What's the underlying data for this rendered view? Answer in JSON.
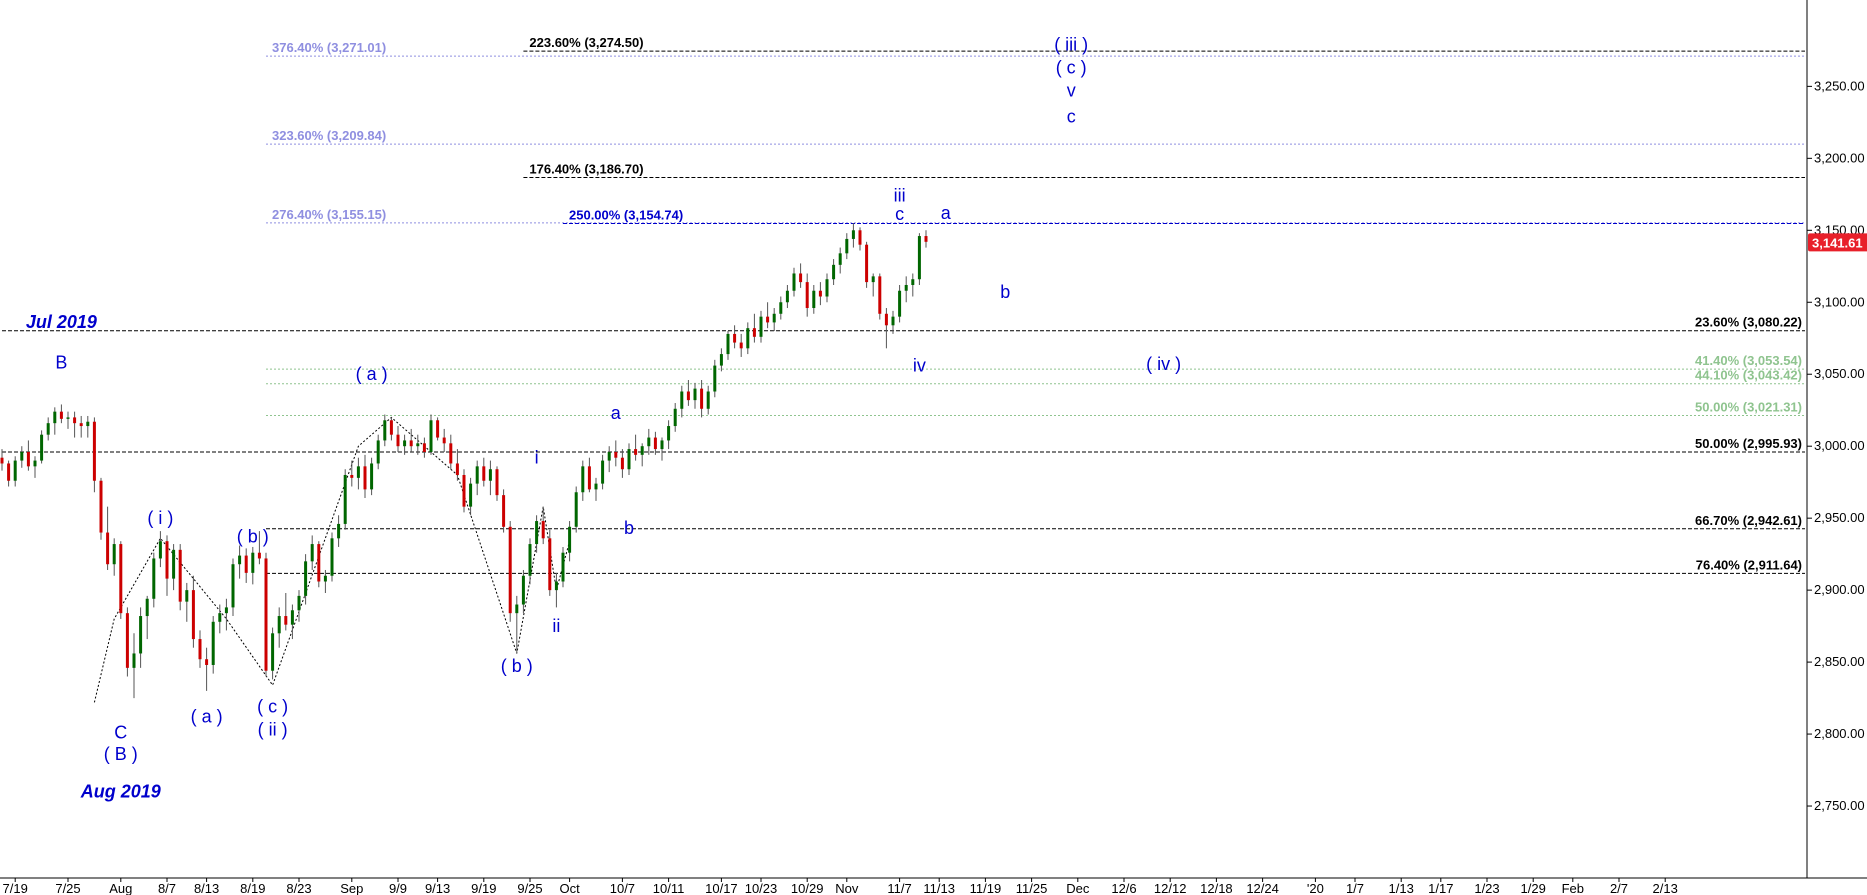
{
  "chart_data": {
    "type": "candlestick",
    "ylim": [
      2700,
      3310
    ],
    "y_ticks": [
      "2,750.00",
      "2,800.00",
      "2,850.00",
      "2,900.00",
      "2,950.00",
      "3,000.00",
      "3,050.00",
      "3,100.00",
      "3,150.00",
      "3,200.00",
      "3,250.00"
    ],
    "y_tick_values": [
      2750,
      2800,
      2850,
      2900,
      2950,
      3000,
      3050,
      3100,
      3150,
      3200,
      3250
    ],
    "x_ticks": [
      "7/19",
      "7/25",
      "Aug",
      "8/7",
      "8/13",
      "8/19",
      "8/23",
      "Sep",
      "9/9",
      "9/13",
      "9/19",
      "9/25",
      "Oct",
      "10/7",
      "10/11",
      "10/17",
      "10/23",
      "10/29",
      "Nov",
      "11/7",
      "11/13",
      "11/19",
      "11/25",
      "Dec",
      "12/6",
      "12/12",
      "12/18",
      "12/24",
      "'20",
      "1/7",
      "1/13",
      "1/17",
      "1/23",
      "1/29",
      "Feb",
      "2/7",
      "2/13"
    ],
    "x_tick_bars": [
      2,
      10,
      18,
      25,
      31,
      38,
      45,
      53,
      60,
      66,
      73,
      80,
      86,
      94,
      101,
      109,
      115,
      122,
      128,
      136,
      142,
      149,
      156,
      163,
      170,
      177,
      184,
      191,
      199,
      205,
      212,
      218,
      225,
      232,
      238,
      245,
      252
    ],
    "last_price": "3,141.61",
    "last_value": 3141.61,
    "colors": {
      "up": "#006600",
      "down": "#cc0000",
      "wick": "#555555",
      "wave": "#0000cc",
      "last_price_bg": "#e8202a"
    },
    "fib_levels": [
      {
        "label": "223.60% (3,274.50)",
        "value": 3274.5,
        "color": "#000000",
        "style": "dash",
        "from_bar": 79
      },
      {
        "label": "376.40% (3,271.01)",
        "value": 3271.01,
        "color": "#8f8fe0",
        "style": "dot",
        "from_bar": 40
      },
      {
        "label": "323.60% (3,209.84)",
        "value": 3209.84,
        "color": "#8f8fe0",
        "style": "dot",
        "from_bar": 40
      },
      {
        "label": "176.40% (3,186.70)",
        "value": 3186.7,
        "color": "#000000",
        "style": "dash",
        "from_bar": 79
      },
      {
        "label": "276.40% (3,155.15)",
        "value": 3155.15,
        "color": "#8f8fe0",
        "style": "dot",
        "from_bar": 40
      },
      {
        "label": "250.00% (3,154.74)",
        "value": 3154.74,
        "color": "#0000cc",
        "style": "dash",
        "from_bar": 85
      },
      {
        "label": "23.60% (3,080.22)",
        "value": 3080.22,
        "color": "#000000",
        "style": "dash",
        "from_bar": 0
      },
      {
        "label": "41.40% (3,053.54)",
        "value": 3053.54,
        "color": "#8fc48f",
        "style": "dot",
        "from_bar": 40
      },
      {
        "label": "44.10% (3,043.42)",
        "value": 3043.42,
        "color": "#8fc48f",
        "style": "dot",
        "from_bar": 40
      },
      {
        "label": "50.00% (3,021.31)",
        "value": 3021.31,
        "color": "#8fc48f",
        "style": "dot",
        "from_bar": 40
      },
      {
        "label": "50.00% (2,995.93)",
        "value": 2995.93,
        "color": "#000000",
        "style": "dash",
        "from_bar": 0
      },
      {
        "label": "66.70% (2,942.61)",
        "value": 2942.61,
        "color": "#000000",
        "style": "dash",
        "from_bar": 40
      },
      {
        "label": "76.40% (2,911.64)",
        "value": 2911.64,
        "color": "#000000",
        "style": "dash",
        "from_bar": 40
      }
    ],
    "wave_labels": [
      {
        "text": "B",
        "bar": 9,
        "value": 3054
      },
      {
        "text": "( i )",
        "bar": 24,
        "value": 2946
      },
      {
        "text": "( b )",
        "bar": 38,
        "value": 2933
      },
      {
        "text": "( a )",
        "bar": 56,
        "value": 3046
      },
      {
        "text": "i",
        "bar": 81,
        "value": 2988
      },
      {
        "text": "a",
        "bar": 93,
        "value": 3019
      },
      {
        "text": "b",
        "bar": 95,
        "value": 2939
      },
      {
        "text": "ii",
        "bar": 84,
        "value": 2871
      },
      {
        "text": "( b )",
        "bar": 78,
        "value": 2843
      },
      {
        "text": "( a )",
        "bar": 31,
        "value": 2808
      },
      {
        "text": "( c )",
        "bar": 41,
        "value": 2815
      },
      {
        "text": "( ii )",
        "bar": 41,
        "value": 2799
      },
      {
        "text": "C",
        "bar": 18,
        "value": 2797
      },
      {
        "text": "( B )",
        "bar": 18,
        "value": 2782
      },
      {
        "text": "iii",
        "bar": 136,
        "value": 3170
      },
      {
        "text": "c",
        "bar": 136,
        "value": 3157
      },
      {
        "text": "a",
        "bar": 143,
        "value": 3158
      },
      {
        "text": "b",
        "bar": 152,
        "value": 3103
      },
      {
        "text": "iv",
        "bar": 139,
        "value": 3052
      },
      {
        "text": "( iv )",
        "bar": 176,
        "value": 3053
      },
      {
        "text": "( iii )",
        "bar": 162,
        "value": 3275
      },
      {
        "text": "( c )",
        "bar": 162,
        "value": 3259
      },
      {
        "text": "v",
        "bar": 162,
        "value": 3243
      },
      {
        "text": "c",
        "bar": 162,
        "value": 3225
      }
    ],
    "notes": [
      {
        "text": "Jul 2019",
        "bar": 9,
        "value": 3082
      },
      {
        "text": "Aug 2019",
        "bar": 18,
        "value": 2756
      }
    ],
    "ohlc": [
      [
        2992,
        2998,
        2983,
        2988
      ],
      [
        2988,
        2990,
        2972,
        2976
      ],
      [
        2976,
        2993,
        2972,
        2990
      ],
      [
        2990,
        3000,
        2985,
        2996
      ],
      [
        2996,
        3004,
        2983,
        2986
      ],
      [
        2986,
        2993,
        2978,
        2990
      ],
      [
        2990,
        3011,
        2988,
        3008
      ],
      [
        3008,
        3020,
        3004,
        3016
      ],
      [
        3016,
        3027,
        3008,
        3024
      ],
      [
        3024,
        3029,
        3016,
        3019
      ],
      [
        3019,
        3024,
        3012,
        3020
      ],
      [
        3020,
        3024,
        3006,
        3016
      ],
      [
        3016,
        3021,
        3006,
        3014
      ],
      [
        3014,
        3021,
        3006,
        3017
      ],
      [
        3017,
        3020,
        2968,
        2976
      ],
      [
        2976,
        2978,
        2935,
        2940
      ],
      [
        2940,
        2958,
        2914,
        2918
      ],
      [
        2918,
        2936,
        2910,
        2932
      ],
      [
        2932,
        2934,
        2880,
        2884
      ],
      [
        2884,
        2888,
        2840,
        2846
      ],
      [
        2846,
        2870,
        2825,
        2856
      ],
      [
        2856,
        2888,
        2846,
        2882
      ],
      [
        2882,
        2896,
        2866,
        2894
      ],
      [
        2894,
        2926,
        2888,
        2922
      ],
      [
        2922,
        2941,
        2916,
        2934
      ],
      [
        2934,
        2938,
        2896,
        2908
      ],
      [
        2908,
        2932,
        2900,
        2928
      ],
      [
        2928,
        2932,
        2886,
        2892
      ],
      [
        2892,
        2905,
        2878,
        2900
      ],
      [
        2900,
        2910,
        2860,
        2866
      ],
      [
        2866,
        2872,
        2846,
        2852
      ],
      [
        2852,
        2860,
        2830,
        2848
      ],
      [
        2848,
        2882,
        2842,
        2878
      ],
      [
        2878,
        2890,
        2870,
        2884
      ],
      [
        2884,
        2894,
        2872,
        2888
      ],
      [
        2888,
        2922,
        2882,
        2918
      ],
      [
        2918,
        2931,
        2908,
        2924
      ],
      [
        2924,
        2929,
        2905,
        2912
      ],
      [
        2912,
        2930,
        2904,
        2926
      ],
      [
        2926,
        2941,
        2918,
        2922
      ],
      [
        2922,
        2926,
        2840,
        2844
      ],
      [
        2844,
        2874,
        2838,
        2870
      ],
      [
        2870,
        2888,
        2860,
        2882
      ],
      [
        2882,
        2898,
        2872,
        2876
      ],
      [
        2876,
        2890,
        2866,
        2886
      ],
      [
        2886,
        2900,
        2878,
        2896
      ],
      [
        2896,
        2925,
        2890,
        2920
      ],
      [
        2920,
        2938,
        2914,
        2932
      ],
      [
        2932,
        2934,
        2902,
        2906
      ],
      [
        2906,
        2914,
        2898,
        2910
      ],
      [
        2910,
        2940,
        2906,
        2936
      ],
      [
        2936,
        2952,
        2930,
        2946
      ],
      [
        2946,
        2984,
        2942,
        2980
      ],
      [
        2980,
        2990,
        2972,
        2978
      ],
      [
        2978,
        2992,
        2970,
        2986
      ],
      [
        2986,
        2994,
        2964,
        2970
      ],
      [
        2970,
        2992,
        2966,
        2988
      ],
      [
        2988,
        3008,
        2984,
        3004
      ],
      [
        3004,
        3022,
        3000,
        3018
      ],
      [
        3018,
        3020,
        3004,
        3008
      ],
      [
        3008,
        3014,
        2996,
        3000
      ],
      [
        3000,
        3008,
        2994,
        3004
      ],
      [
        3004,
        3012,
        2996,
        3000
      ],
      [
        3000,
        3008,
        2994,
        3002
      ],
      [
        3002,
        3006,
        2992,
        2996
      ],
      [
        2996,
        3022,
        2994,
        3018
      ],
      [
        3018,
        3020,
        3004,
        3006
      ],
      [
        3006,
        3012,
        2996,
        3002
      ],
      [
        3002,
        3008,
        2984,
        2988
      ],
      [
        2988,
        2998,
        2976,
        2980
      ],
      [
        2980,
        2984,
        2954,
        2958
      ],
      [
        2958,
        2978,
        2952,
        2974
      ],
      [
        2974,
        2990,
        2966,
        2986
      ],
      [
        2986,
        2992,
        2972,
        2976
      ],
      [
        2976,
        2990,
        2966,
        2984
      ],
      [
        2984,
        2986,
        2962,
        2966
      ],
      [
        2966,
        2970,
        2940,
        2944
      ],
      [
        2944,
        2948,
        2878,
        2884
      ],
      [
        2884,
        2896,
        2856,
        2890
      ],
      [
        2890,
        2914,
        2884,
        2910
      ],
      [
        2910,
        2936,
        2904,
        2932
      ],
      [
        2932,
        2952,
        2926,
        2948
      ],
      [
        2948,
        2958,
        2932,
        2936
      ],
      [
        2936,
        2942,
        2896,
        2900
      ],
      [
        2900,
        2912,
        2888,
        2906
      ],
      [
        2906,
        2930,
        2902,
        2926
      ],
      [
        2926,
        2948,
        2920,
        2944
      ],
      [
        2944,
        2972,
        2940,
        2968
      ],
      [
        2968,
        2990,
        2962,
        2986
      ],
      [
        2986,
        2992,
        2968,
        2970
      ],
      [
        2970,
        2978,
        2962,
        2974
      ],
      [
        2974,
        2994,
        2970,
        2990
      ],
      [
        2990,
        3000,
        2982,
        2996
      ],
      [
        2996,
        3004,
        2986,
        2992
      ],
      [
        2992,
        2998,
        2978,
        2984
      ],
      [
        2984,
        3002,
        2980,
        2998
      ],
      [
        2998,
        3008,
        2990,
        2994
      ],
      [
        2994,
        3002,
        2986,
        3000
      ],
      [
        3000,
        3012,
        2994,
        3006
      ],
      [
        3006,
        3010,
        2994,
        2998
      ],
      [
        2998,
        3006,
        2990,
        3004
      ],
      [
        3004,
        3018,
        2998,
        3014
      ],
      [
        3014,
        3030,
        3010,
        3026
      ],
      [
        3026,
        3042,
        3020,
        3038
      ],
      [
        3038,
        3046,
        3028,
        3032
      ],
      [
        3032,
        3044,
        3026,
        3040
      ],
      [
        3040,
        3046,
        3020,
        3026
      ],
      [
        3026,
        3042,
        3022,
        3038
      ],
      [
        3038,
        3060,
        3034,
        3056
      ],
      [
        3056,
        3068,
        3052,
        3064
      ],
      [
        3064,
        3080,
        3060,
        3078
      ],
      [
        3078,
        3084,
        3068,
        3072
      ],
      [
        3072,
        3078,
        3062,
        3068
      ],
      [
        3068,
        3086,
        3064,
        3082
      ],
      [
        3082,
        3092,
        3072,
        3076
      ],
      [
        3076,
        3094,
        3072,
        3090
      ],
      [
        3090,
        3100,
        3082,
        3086
      ],
      [
        3086,
        3096,
        3080,
        3092
      ],
      [
        3092,
        3104,
        3088,
        3100
      ],
      [
        3100,
        3112,
        3096,
        3108
      ],
      [
        3108,
        3124,
        3104,
        3120
      ],
      [
        3120,
        3127,
        3110,
        3114
      ],
      [
        3114,
        3120,
        3090,
        3096
      ],
      [
        3096,
        3112,
        3092,
        3108
      ],
      [
        3108,
        3114,
        3098,
        3104
      ],
      [
        3104,
        3120,
        3100,
        3116
      ],
      [
        3116,
        3130,
        3112,
        3126
      ],
      [
        3126,
        3138,
        3120,
        3134
      ],
      [
        3134,
        3148,
        3130,
        3144
      ],
      [
        3144,
        3155,
        3138,
        3150
      ],
      [
        3150,
        3152,
        3136,
        3140
      ],
      [
        3140,
        3142,
        3110,
        3114
      ],
      [
        3114,
        3120,
        3104,
        3118
      ],
      [
        3118,
        3120,
        3088,
        3092
      ],
      [
        3092,
        3096,
        3068,
        3084
      ],
      [
        3084,
        3094,
        3078,
        3090
      ],
      [
        3090,
        3112,
        3086,
        3108
      ],
      [
        3108,
        3118,
        3100,
        3112
      ],
      [
        3112,
        3120,
        3104,
        3116
      ],
      [
        3116,
        3148,
        3112,
        3146
      ],
      [
        3146,
        3150,
        3138,
        3142
      ]
    ],
    "wave_path_dotted": [
      [
        14,
        2822
      ],
      [
        17,
        2880
      ],
      [
        24,
        2936
      ],
      [
        34,
        2880
      ],
      [
        41,
        2834
      ],
      [
        54,
        3000
      ],
      [
        59,
        3020
      ],
      [
        69,
        2980
      ],
      [
        78,
        2856
      ],
      [
        82,
        2958
      ],
      [
        84,
        2900
      ],
      [
        86,
        2934
      ]
    ]
  }
}
